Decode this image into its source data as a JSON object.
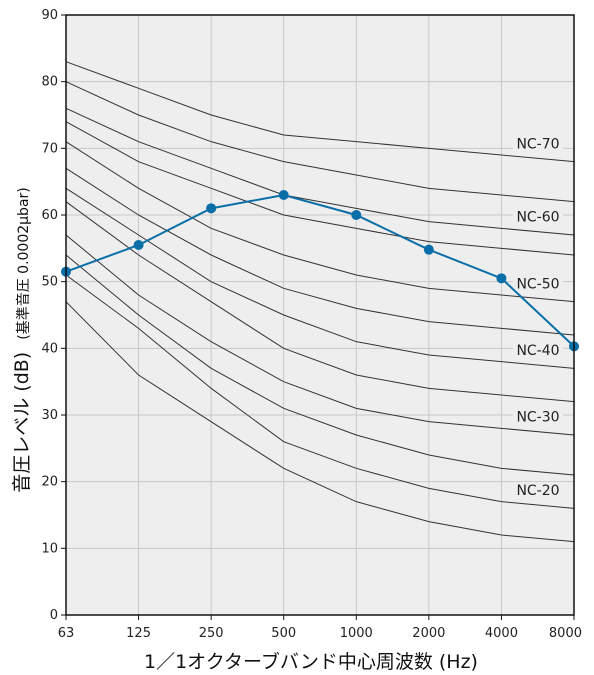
{
  "chart_data": {
    "type": "line",
    "xlabel": "1／1オクターブバンド中心周波数 (Hz)",
    "ylabel_main": "音圧レベル (dB)",
    "ylabel_sub": "(基準音圧 0.0002μbar)",
    "categories": [
      "63",
      "125",
      "250",
      "500",
      "1000",
      "2000",
      "4000",
      "8000"
    ],
    "ylim": [
      0,
      90
    ],
    "yticks": [
      0,
      10,
      20,
      30,
      40,
      50,
      60,
      70,
      80,
      90
    ],
    "grid": true,
    "background": "#eeeeee",
    "measured_color": "#0a6fa8",
    "curve_color": "#333333",
    "nc_curves": [
      {
        "label": "NC-70",
        "values": [
          83,
          79,
          75,
          72,
          71,
          70,
          69,
          68
        ]
      },
      {
        "label": "",
        "values": [
          80,
          75,
          71,
          68,
          66,
          64,
          63,
          62
        ]
      },
      {
        "label": "NC-60",
        "values": [
          76,
          71,
          67,
          63,
          61,
          59,
          58,
          57
        ]
      },
      {
        "label": "",
        "values": [
          74,
          68,
          64,
          60,
          58,
          56,
          55,
          54
        ]
      },
      {
        "label": "NC-50",
        "values": [
          71,
          64,
          58,
          54,
          51,
          49,
          48,
          47
        ]
      },
      {
        "label": "",
        "values": [
          67,
          60,
          54,
          49,
          46,
          44,
          43,
          42
        ]
      },
      {
        "label": "NC-40",
        "values": [
          64,
          57,
          50,
          45,
          41,
          39,
          38,
          37
        ]
      },
      {
        "label": "",
        "values": [
          62,
          54,
          47,
          40,
          36,
          34,
          33,
          32
        ]
      },
      {
        "label": "NC-30",
        "values": [
          57,
          48,
          41,
          35,
          31,
          29,
          28,
          27
        ]
      },
      {
        "label": "",
        "values": [
          54,
          45,
          37,
          31,
          27,
          24,
          22,
          21
        ]
      },
      {
        "label": "NC-20",
        "values": [
          51,
          43,
          34,
          26,
          22,
          19,
          17,
          16
        ]
      },
      {
        "label": "",
        "values": [
          47,
          36,
          29,
          22,
          17,
          14,
          12,
          11
        ]
      }
    ],
    "series": [
      {
        "values": [
          51.5,
          55.5,
          61,
          63,
          60,
          54.8,
          50.5,
          40.3
        ]
      }
    ]
  }
}
